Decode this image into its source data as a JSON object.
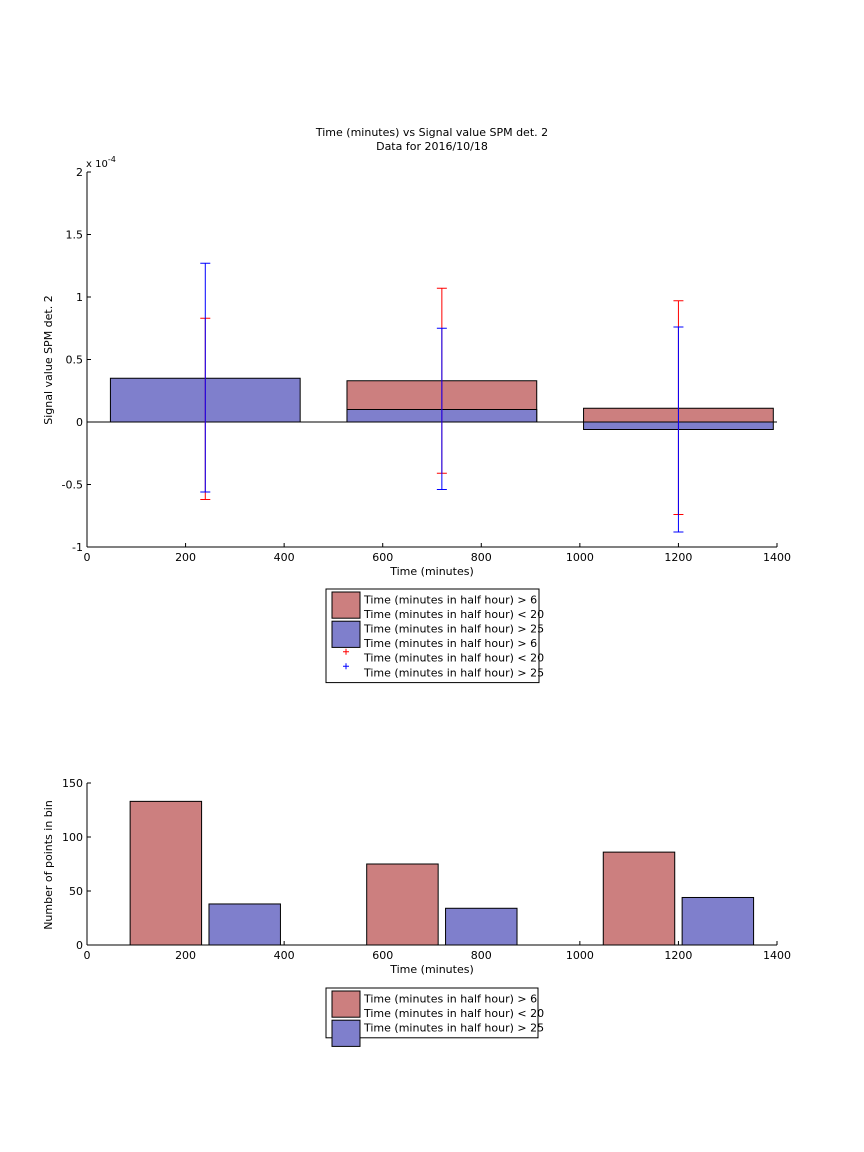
{
  "chart_data": [
    {
      "type": "bar",
      "title": "Time (minutes) vs Signal value SPM det. 2",
      "subtitle": "Data for 2016/10/18",
      "xlabel": "Time (minutes)",
      "ylabel": "Signal value SPM det. 2",
      "y_exponent_label": "x 10",
      "y_exponent_power": "-4",
      "xlim": [
        0,
        1400
      ],
      "ylim": [
        -1,
        2
      ],
      "xticks": [
        0,
        200,
        400,
        600,
        800,
        1000,
        1200,
        1400
      ],
      "xtick_labels": [
        "0",
        "200",
        "400",
        "600",
        "800",
        "1000",
        "1200",
        "1400"
      ],
      "yticks": [
        -1,
        -0.5,
        0,
        0.5,
        1,
        1.5,
        2
      ],
      "ytick_labels": [
        "-1",
        "-0.5",
        "0",
        "0.5",
        "1",
        "1.5",
        "2"
      ],
      "grid": false,
      "legend_placement": "below",
      "categories": [
        240,
        720,
        1200
      ],
      "bar_width": 385,
      "series": [
        {
          "name": "Time (minutes in half hour) > 6\nTime (minutes in half hour) < 20",
          "color": "#cc7f7f",
          "values": [
            null,
            0.33,
            0.11
          ],
          "errorbar_color": "#ff0000",
          "errorbars": [
            [
              -0.62,
              0.83
            ],
            [
              -0.41,
              1.07
            ],
            [
              -0.74,
              0.97
            ]
          ]
        },
        {
          "name": "Time (minutes in half hour) > 25",
          "color": "#7f7fcc",
          "values": [
            0.35,
            0.1,
            -0.06
          ],
          "errorbar_color": "#0000ff",
          "errorbars": [
            [
              -0.56,
              1.27
            ],
            [
              -0.54,
              0.75
            ],
            [
              -0.88,
              0.76
            ]
          ]
        }
      ],
      "legend": [
        {
          "label": "Time (minutes in half hour) > 6",
          "kind": "patch",
          "color": "#cc7f7f"
        },
        {
          "label": "Time (minutes in half hour) < 20",
          "kind": "none"
        },
        {
          "label": "Time (minutes in half hour) > 25",
          "kind": "patch",
          "color": "#7f7fcc"
        },
        {
          "label": "Time (minutes in half hour) > 6",
          "kind": "none"
        },
        {
          "label": "Time (minutes in half hour) < 20",
          "kind": "marker",
          "color": "#ff0000"
        },
        {
          "label": "Time (minutes in half hour) > 25",
          "kind": "marker",
          "color": "#0000ff"
        }
      ]
    },
    {
      "type": "bar",
      "xlabel": "Time (minutes)",
      "ylabel": "Number of points in bin",
      "xlim": [
        0,
        1400
      ],
      "ylim": [
        0,
        150
      ],
      "xticks": [
        0,
        200,
        400,
        600,
        800,
        1000,
        1200,
        1400
      ],
      "xtick_labels": [
        "0",
        "200",
        "400",
        "600",
        "800",
        "1000",
        "1200",
        "1400"
      ],
      "yticks": [
        0,
        50,
        100,
        150
      ],
      "ytick_labels": [
        "0",
        "50",
        "100",
        "150"
      ],
      "grid": false,
      "legend_placement": "below",
      "bar_width": 145,
      "series": [
        {
          "name": "Time (minutes in half hour) > 6\nTime (minutes in half hour) < 20",
          "color": "#cc7f7f",
          "x": [
            160,
            640,
            1120
          ],
          "values": [
            133,
            75,
            86
          ]
        },
        {
          "name": "Time (minutes in half hour) > 25",
          "color": "#7f7fcc",
          "x": [
            320,
            800,
            1280
          ],
          "values": [
            38,
            34,
            44
          ]
        }
      ],
      "legend": [
        {
          "label": "Time (minutes in half hour) > 6",
          "kind": "patch",
          "color": "#cc7f7f"
        },
        {
          "label": "Time (minutes in half hour) < 20",
          "kind": "none"
        },
        {
          "label": "Time (minutes in half hour) > 25",
          "kind": "patch",
          "color": "#7f7fcc"
        }
      ]
    }
  ]
}
